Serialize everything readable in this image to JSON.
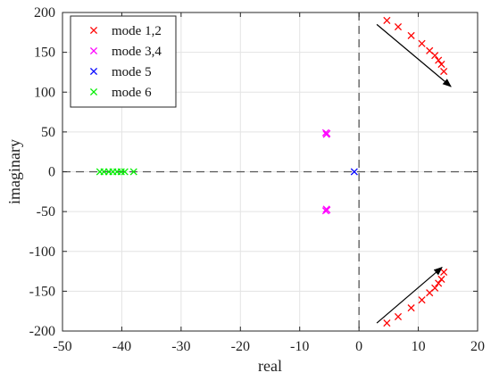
{
  "chart_data": {
    "type": "scatter",
    "xlabel": "real",
    "ylabel": "imaginary",
    "xlim": [
      -50,
      20
    ],
    "ylim": [
      -200,
      200
    ],
    "x_ticks": [
      -50,
      -40,
      -30,
      -20,
      -10,
      0,
      10,
      20
    ],
    "y_ticks": [
      -200,
      -150,
      -100,
      -50,
      0,
      50,
      100,
      150,
      200
    ],
    "grid": true,
    "marker": "x",
    "legend_position": "top-left",
    "reference_lines": {
      "x": 0,
      "y": 0,
      "style": "dashed"
    },
    "series": [
      {
        "name": "mode 1,2",
        "color": "#ff0000",
        "points": [
          [
            4.7,
            190
          ],
          [
            6.6,
            182
          ],
          [
            8.8,
            171
          ],
          [
            10.6,
            161
          ],
          [
            11.9,
            152
          ],
          [
            12.8,
            146
          ],
          [
            13.4,
            140
          ],
          [
            13.9,
            135
          ],
          [
            14.3,
            126
          ],
          [
            4.7,
            -190
          ],
          [
            6.6,
            -182
          ],
          [
            8.8,
            -171
          ],
          [
            10.6,
            -161
          ],
          [
            11.9,
            -152
          ],
          [
            12.8,
            -146
          ],
          [
            13.4,
            -140
          ],
          [
            13.9,
            -135
          ],
          [
            14.3,
            -126
          ]
        ]
      },
      {
        "name": "mode 3,4",
        "color": "#ff00ff",
        "points": [
          [
            -5.6,
            49
          ],
          [
            -5.4,
            48
          ],
          [
            -5.5,
            47
          ],
          [
            -5.6,
            -49
          ],
          [
            -5.4,
            -48
          ],
          [
            -5.5,
            -47
          ]
        ]
      },
      {
        "name": "mode 5",
        "color": "#0000ff",
        "points": [
          [
            -0.8,
            0
          ]
        ]
      },
      {
        "name": "mode 6",
        "color": "#00ee00",
        "points": [
          [
            -43.7,
            0
          ],
          [
            -43.0,
            0
          ],
          [
            -42.2,
            0
          ],
          [
            -41.5,
            0
          ],
          [
            -40.8,
            0
          ],
          [
            -40.1,
            0
          ],
          [
            -39.5,
            0
          ],
          [
            -38.0,
            0
          ]
        ]
      }
    ],
    "arrows": [
      {
        "from": [
          3,
          185
        ],
        "to": [
          15.5,
          107
        ]
      },
      {
        "from": [
          3,
          -190
        ],
        "to": [
          14,
          -120
        ]
      }
    ]
  }
}
